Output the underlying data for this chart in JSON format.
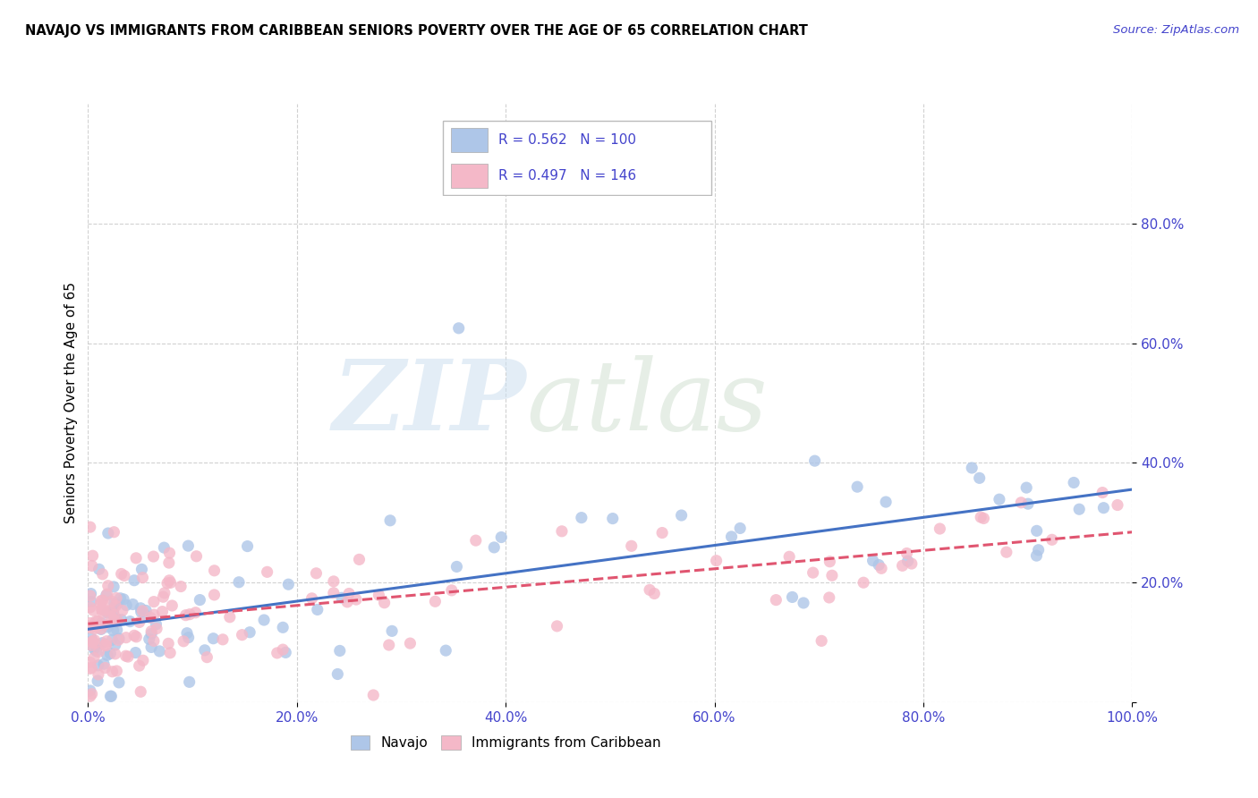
{
  "title": "NAVAJO VS IMMIGRANTS FROM CARIBBEAN SENIORS POVERTY OVER THE AGE OF 65 CORRELATION CHART",
  "source": "Source: ZipAtlas.com",
  "ylabel": "Seniors Poverty Over the Age of 65",
  "navajo_R": 0.562,
  "navajo_N": 100,
  "caribbean_R": 0.497,
  "caribbean_N": 146,
  "navajo_color": "#aec6e8",
  "navajo_line_color": "#4472c4",
  "caribbean_color": "#f4b8c8",
  "caribbean_line_color": "#e05570",
  "tick_color": "#4444cc",
  "xlim": [
    0.0,
    1.0
  ],
  "ylim": [
    0.0,
    1.0
  ],
  "xtick_vals": [
    0.0,
    0.2,
    0.4,
    0.6,
    0.8,
    1.0
  ],
  "ytick_vals": [
    0.0,
    0.2,
    0.4,
    0.6,
    0.8
  ],
  "xticklabels": [
    "0.0%",
    "20.0%",
    "40.0%",
    "60.0%",
    "80.0%",
    "100.0%"
  ],
  "yticklabels": [
    "",
    "20.0%",
    "40.0%",
    "60.0%",
    "80.0%"
  ]
}
